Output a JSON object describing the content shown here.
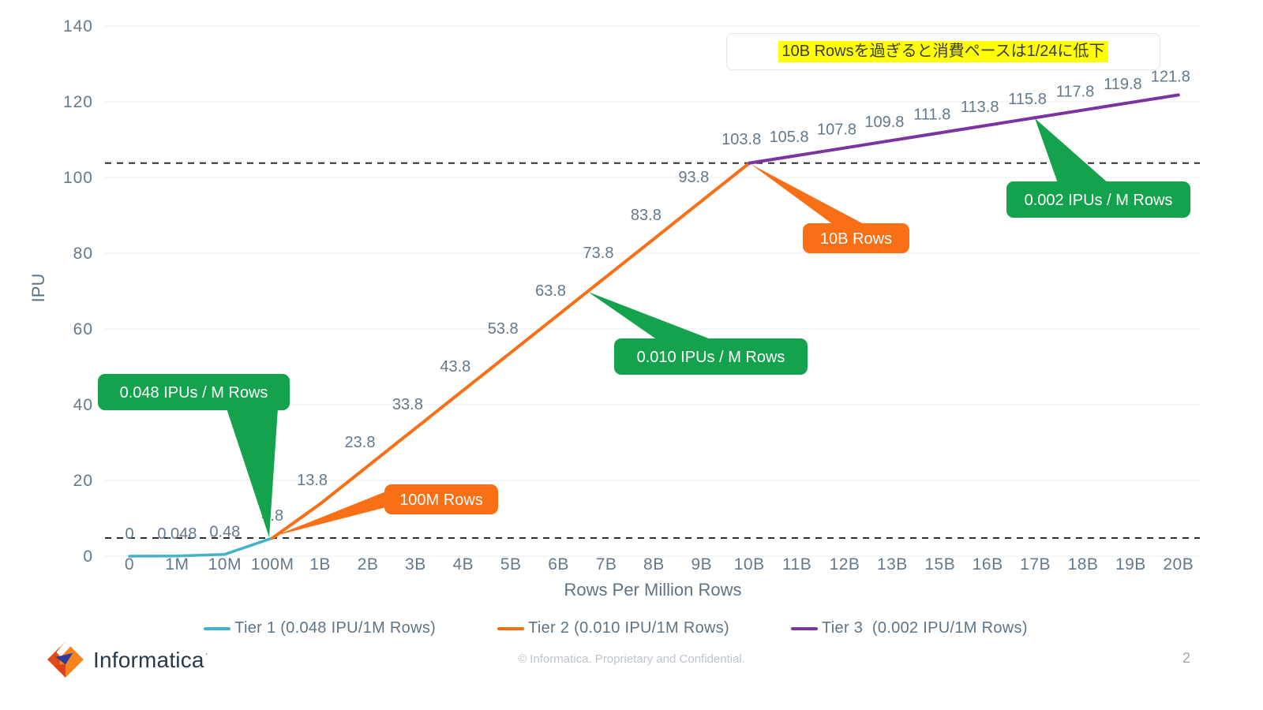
{
  "note": {
    "text": "10B Rowsを過ぎると消費ペースは1/24に低下"
  },
  "chart_data": {
    "type": "line",
    "title": "",
    "xlabel": "Rows Per Million Rows",
    "ylabel": "IPU",
    "ylim": [
      0,
      140
    ],
    "yticks": [
      0,
      20,
      40,
      60,
      80,
      100,
      120,
      140
    ],
    "grid": true,
    "legend_position": "bottom",
    "categories": [
      "0",
      "1M",
      "10M",
      "100M",
      "1B",
      "2B",
      "3B",
      "4B",
      "5B",
      "6B",
      "7B",
      "8B",
      "9B",
      "10B",
      "11B",
      "12B",
      "13B",
      "15B",
      "16B",
      "17B",
      "18B",
      "19B",
      "20B"
    ],
    "reference_lines": [
      {
        "y": 103.8,
        "style": "dashed"
      },
      {
        "y": 4.8,
        "style": "dashed"
      }
    ],
    "series": [
      {
        "name": "Tier 1 (0.048 IPU/1M Rows)",
        "color": "#44b3c9",
        "start_index": 0,
        "values": [
          0,
          0.048,
          0.48,
          4.8
        ],
        "labels": [
          "0",
          "0.048",
          "0.48",
          "4.8"
        ]
      },
      {
        "name": "Tier 2 (0.010 IPU/1M Rows)",
        "color": "#f86f15",
        "start_index": 3,
        "values": [
          4.8,
          13.8,
          23.8,
          33.8,
          43.8,
          53.8,
          63.8,
          73.8,
          83.8,
          93.8,
          103.8
        ],
        "labels": [
          null,
          "13.8",
          "23.8",
          "33.8",
          "43.8",
          "53.8",
          "63.8",
          "73.8",
          "83.8",
          "93.8",
          "103.8"
        ]
      },
      {
        "name": "Tier 3  (0.002 IPU/1M Rows)",
        "color": "#7c35a0",
        "start_index": 13,
        "values": [
          103.8,
          105.8,
          107.8,
          109.8,
          111.8,
          113.8,
          115.8,
          117.8,
          119.8,
          121.8
        ],
        "labels": [
          null,
          "105.8",
          "107.8",
          "109.8",
          "111.8",
          "113.8",
          "115.8",
          "117.8",
          "119.8",
          "121.8"
        ]
      }
    ],
    "annotations": [
      {
        "id": "rate-tier1",
        "text": "0.048 IPUs / M Rows",
        "fill": "#15a24c",
        "text_color": "#ffffff"
      },
      {
        "id": "rate-tier2",
        "text": "0.010 IPUs / M Rows",
        "fill": "#15a24c",
        "text_color": "#ffffff"
      },
      {
        "id": "rate-tier3",
        "text": "0.002 IPUs / M Rows",
        "fill": "#15a24c",
        "text_color": "#ffffff"
      },
      {
        "id": "threshold-100m",
        "text": "100M Rows",
        "fill": "#f86f15",
        "text_color": "#ffffff"
      },
      {
        "id": "threshold-10b",
        "text": "10B Rows",
        "fill": "#f86f15",
        "text_color": "#ffffff"
      }
    ]
  },
  "footer": {
    "copyright": "© Informatica. Proprietary and Confidential.",
    "page_number": "2",
    "brand": "Informatica",
    "brand_mark": "·"
  }
}
